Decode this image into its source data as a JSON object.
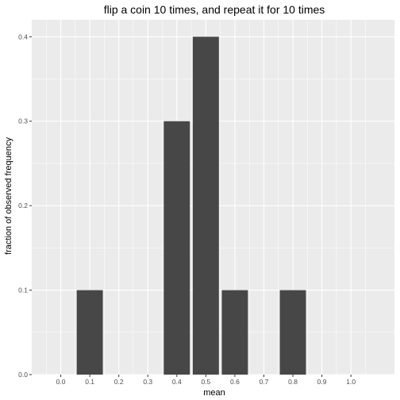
{
  "chart_data": {
    "type": "bar",
    "title": "flip a coin 10 times, and repeat it for 10 times",
    "xlabel": "mean",
    "ylabel": "fraction of observed frequency",
    "x": [
      0.1,
      0.4,
      0.5,
      0.6,
      0.8
    ],
    "values": [
      0.1,
      0.3,
      0.4,
      0.1,
      0.1
    ],
    "bar_width": 0.09,
    "xlim": [
      -0.1,
      1.15
    ],
    "ylim": [
      0,
      0.42
    ],
    "x_ticks": [
      0.0,
      0.1,
      0.2,
      0.3,
      0.4,
      0.5,
      0.6,
      0.7,
      0.8,
      0.9,
      1.0
    ],
    "x_tick_labels": [
      "0.0",
      "0.1",
      "0.2",
      "0.3",
      "0.4",
      "0.5",
      "0.6",
      "0.7",
      "0.8",
      "0.9",
      "1.0"
    ],
    "y_ticks": [
      0.0,
      0.1,
      0.2,
      0.3,
      0.4
    ],
    "y_tick_labels": [
      "0.0",
      "0.1",
      "0.2",
      "0.3",
      "0.4"
    ],
    "grid": true,
    "colors": {
      "bar": "#474747",
      "panel": "#ebebeb",
      "grid": "#ffffff"
    }
  }
}
